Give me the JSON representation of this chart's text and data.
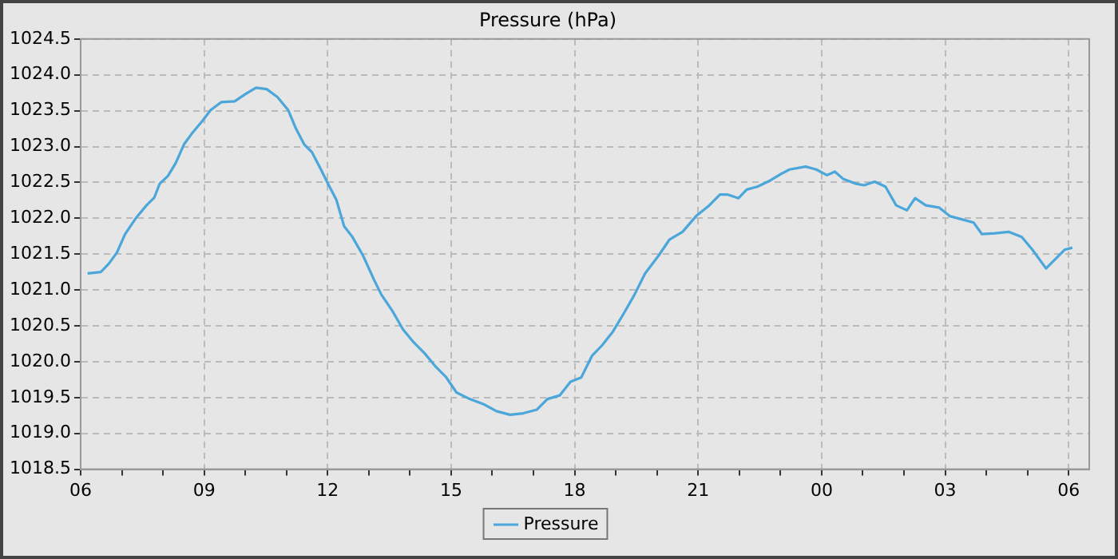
{
  "chart_data": {
    "type": "line",
    "title": "Pressure (hPa)",
    "xlim": [
      6,
      30.5
    ],
    "xticks": [
      {
        "value": 6,
        "label": "06"
      },
      {
        "value": 7,
        "label": null
      },
      {
        "value": 8,
        "label": null
      },
      {
        "value": 9,
        "label": "09"
      },
      {
        "value": 10,
        "label": null
      },
      {
        "value": 11,
        "label": null
      },
      {
        "value": 12,
        "label": "12"
      },
      {
        "value": 13,
        "label": null
      },
      {
        "value": 14,
        "label": null
      },
      {
        "value": 15,
        "label": "15"
      },
      {
        "value": 16,
        "label": null
      },
      {
        "value": 17,
        "label": null
      },
      {
        "value": 18,
        "label": "18"
      },
      {
        "value": 19,
        "label": null
      },
      {
        "value": 20,
        "label": null
      },
      {
        "value": 21,
        "label": "21"
      },
      {
        "value": 22,
        "label": null
      },
      {
        "value": 23,
        "label": null
      },
      {
        "value": 24,
        "label": "00"
      },
      {
        "value": 25,
        "label": null
      },
      {
        "value": 26,
        "label": null
      },
      {
        "value": 27,
        "label": "03"
      },
      {
        "value": 28,
        "label": null
      },
      {
        "value": 29,
        "label": null
      },
      {
        "value": 30,
        "label": "06"
      }
    ],
    "ylim": [
      1018.5,
      1024.5
    ],
    "yticks": [
      {
        "value": 1018.5,
        "label": "1018.5"
      },
      {
        "value": 1019,
        "label": "1019.0"
      },
      {
        "value": 1019.5,
        "label": "1019.5"
      },
      {
        "value": 1020,
        "label": "1020.0"
      },
      {
        "value": 1020.5,
        "label": "1020.5"
      },
      {
        "value": 1021,
        "label": "1021.0"
      },
      {
        "value": 1021.5,
        "label": "1021.5"
      },
      {
        "value": 1022,
        "label": "1022.0"
      },
      {
        "value": 1022.5,
        "label": "1022.5"
      },
      {
        "value": 1023,
        "label": "1023.0"
      },
      {
        "value": 1023.5,
        "label": "1023.5"
      },
      {
        "value": 1024,
        "label": "1024.0"
      },
      {
        "value": 1024.5,
        "label": "1024.5"
      }
    ],
    "grid": true,
    "legend": "bottom",
    "marker": "none",
    "line_style": "solid",
    "series": [
      {
        "name": "Pressure",
        "color": "#4ba6d9",
        "x": [
          6.17,
          6.49,
          6.69,
          6.88,
          7.08,
          7.34,
          7.6,
          7.79,
          7.92,
          8.12,
          8.31,
          8.51,
          8.7,
          8.96,
          9.16,
          9.42,
          9.74,
          10.0,
          10.26,
          10.52,
          10.78,
          11.04,
          11.23,
          11.43,
          11.62,
          11.82,
          12.01,
          12.21,
          12.4,
          12.6,
          12.86,
          13.12,
          13.31,
          13.57,
          13.83,
          14.09,
          14.35,
          14.61,
          14.87,
          15.13,
          15.45,
          15.78,
          16.1,
          16.43,
          16.75,
          17.08,
          17.34,
          17.64,
          17.9,
          18.16,
          18.42,
          18.67,
          18.93,
          19.19,
          19.45,
          19.71,
          20.04,
          20.3,
          20.62,
          20.95,
          21.27,
          21.53,
          21.72,
          21.98,
          22.18,
          22.44,
          22.76,
          23.02,
          23.22,
          23.61,
          23.87,
          24.13,
          24.32,
          24.52,
          24.84,
          25.03,
          25.29,
          25.55,
          25.81,
          26.07,
          26.27,
          26.53,
          26.85,
          27.11,
          27.44,
          27.69,
          27.89,
          28.21,
          28.54,
          28.86,
          29.12,
          29.45,
          29.64,
          29.9,
          30.09
        ],
        "values": [
          1021.23,
          1021.25,
          1021.37,
          1021.52,
          1021.78,
          1022.0,
          1022.18,
          1022.29,
          1022.48,
          1022.59,
          1022.77,
          1023.03,
          1023.18,
          1023.36,
          1023.51,
          1023.62,
          1023.63,
          1023.73,
          1023.82,
          1023.8,
          1023.69,
          1023.51,
          1023.25,
          1023.03,
          1022.92,
          1022.7,
          1022.48,
          1022.26,
          1021.89,
          1021.74,
          1021.48,
          1021.15,
          1020.93,
          1020.71,
          1020.45,
          1020.27,
          1020.12,
          1019.94,
          1019.79,
          1019.57,
          1019.48,
          1019.41,
          1019.31,
          1019.26,
          1019.28,
          1019.33,
          1019.48,
          1019.53,
          1019.72,
          1019.78,
          1020.08,
          1020.23,
          1020.42,
          1020.67,
          1020.93,
          1021.23,
          1021.48,
          1021.7,
          1021.81,
          1022.03,
          1022.18,
          1022.33,
          1022.33,
          1022.28,
          1022.4,
          1022.44,
          1022.53,
          1022.62,
          1022.68,
          1022.72,
          1022.68,
          1022.6,
          1022.65,
          1022.55,
          1022.48,
          1022.46,
          1022.51,
          1022.44,
          1022.18,
          1022.11,
          1022.28,
          1022.18,
          1022.15,
          1022.03,
          1021.98,
          1021.94,
          1021.78,
          1021.79,
          1021.81,
          1021.74,
          1021.56,
          1021.3,
          1021.41,
          1021.56,
          1021.59
        ]
      }
    ]
  }
}
